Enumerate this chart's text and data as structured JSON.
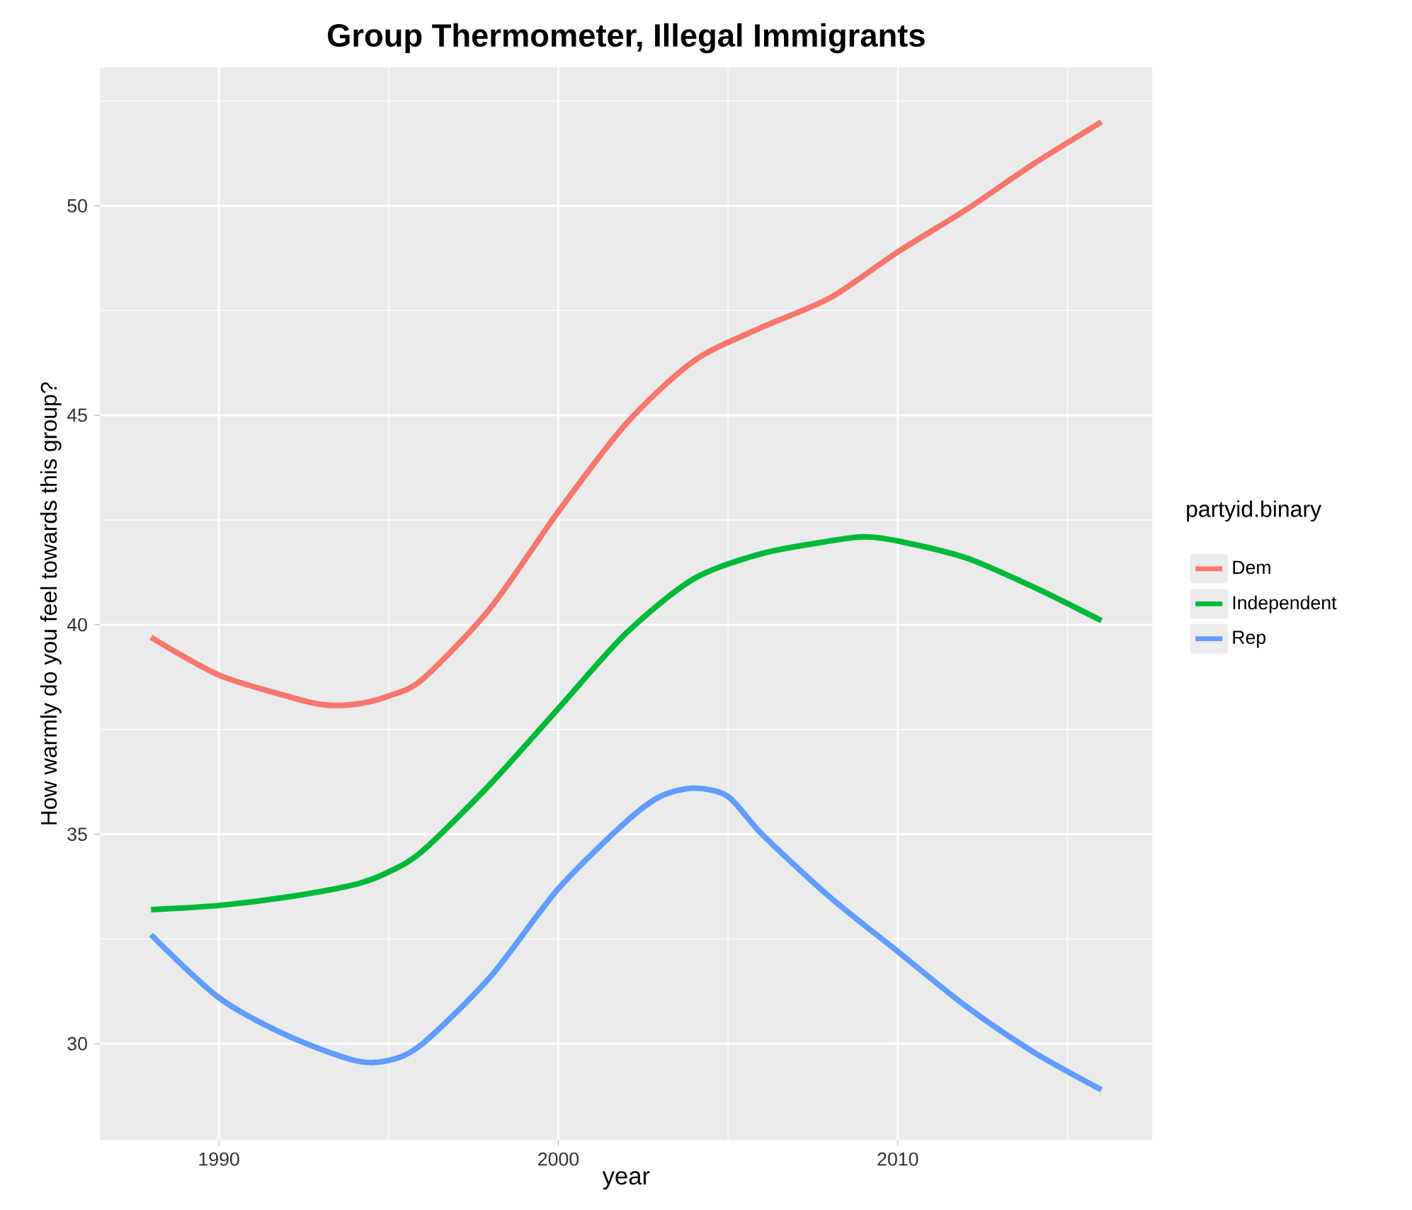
{
  "chart_data": {
    "type": "line",
    "title": "Group Thermometer, Illegal Immigrants",
    "xlabel": "year",
    "ylabel": "How warmly do you feel towards this group?",
    "legend_title": "partyid.binary",
    "legend": "right",
    "grid": true,
    "marker": "none",
    "line_style": "solid",
    "xlim": [
      1986.5,
      2017.5
    ],
    "xticks": [
      1990,
      2000,
      2010
    ],
    "ylim": [
      27.7,
      53.3
    ],
    "yticks": [
      30,
      35,
      40,
      45,
      50
    ],
    "series": [
      {
        "name": "Dem",
        "color": "#f8766d",
        "x": [
          1988,
          1990,
          1992,
          1993,
          1994,
          1995,
          1996,
          1998,
          2000,
          2002,
          2004,
          2006,
          2008,
          2010,
          2012,
          2014,
          2016
        ],
        "values": [
          39.7,
          38.8,
          38.3,
          38.1,
          38.1,
          38.3,
          38.7,
          40.4,
          42.7,
          44.8,
          46.3,
          47.1,
          47.8,
          48.9,
          49.9,
          51.0,
          52.0
        ]
      },
      {
        "name": "Independent",
        "color": "#00ba38",
        "x": [
          1988,
          1990,
          1992,
          1994,
          1995,
          1996,
          1998,
          2000,
          2002,
          2004,
          2006,
          2008,
          2009,
          2010,
          2012,
          2014,
          2016
        ],
        "values": [
          33.2,
          33.3,
          33.5,
          33.8,
          34.1,
          34.6,
          36.2,
          38.0,
          39.8,
          41.1,
          41.7,
          42.0,
          42.1,
          42.0,
          41.6,
          40.9,
          40.1
        ]
      },
      {
        "name": "Rep",
        "color": "#619cff",
        "x": [
          1988,
          1990,
          1992,
          1994,
          1995,
          1996,
          1998,
          2000,
          2002,
          2003,
          2004,
          2005,
          2006,
          2008,
          2010,
          2012,
          2014,
          2016
        ],
        "values": [
          32.6,
          31.1,
          30.2,
          29.6,
          29.6,
          30.0,
          31.6,
          33.7,
          35.3,
          35.9,
          36.1,
          35.9,
          35.0,
          33.5,
          32.2,
          30.9,
          29.8,
          28.9
        ]
      }
    ]
  }
}
